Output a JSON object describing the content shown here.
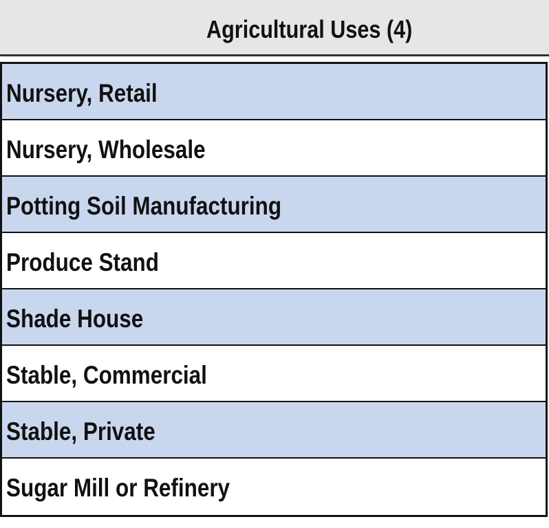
{
  "table": {
    "title": "Agricultural Uses (4)",
    "rows": [
      "Nursery, Retail",
      "Nursery, Wholesale",
      "Potting Soil Manufacturing",
      "Produce Stand",
      "Shade House",
      "Stable, Commercial",
      "Stable, Private",
      "Sugar Mill or Refinery"
    ]
  }
}
